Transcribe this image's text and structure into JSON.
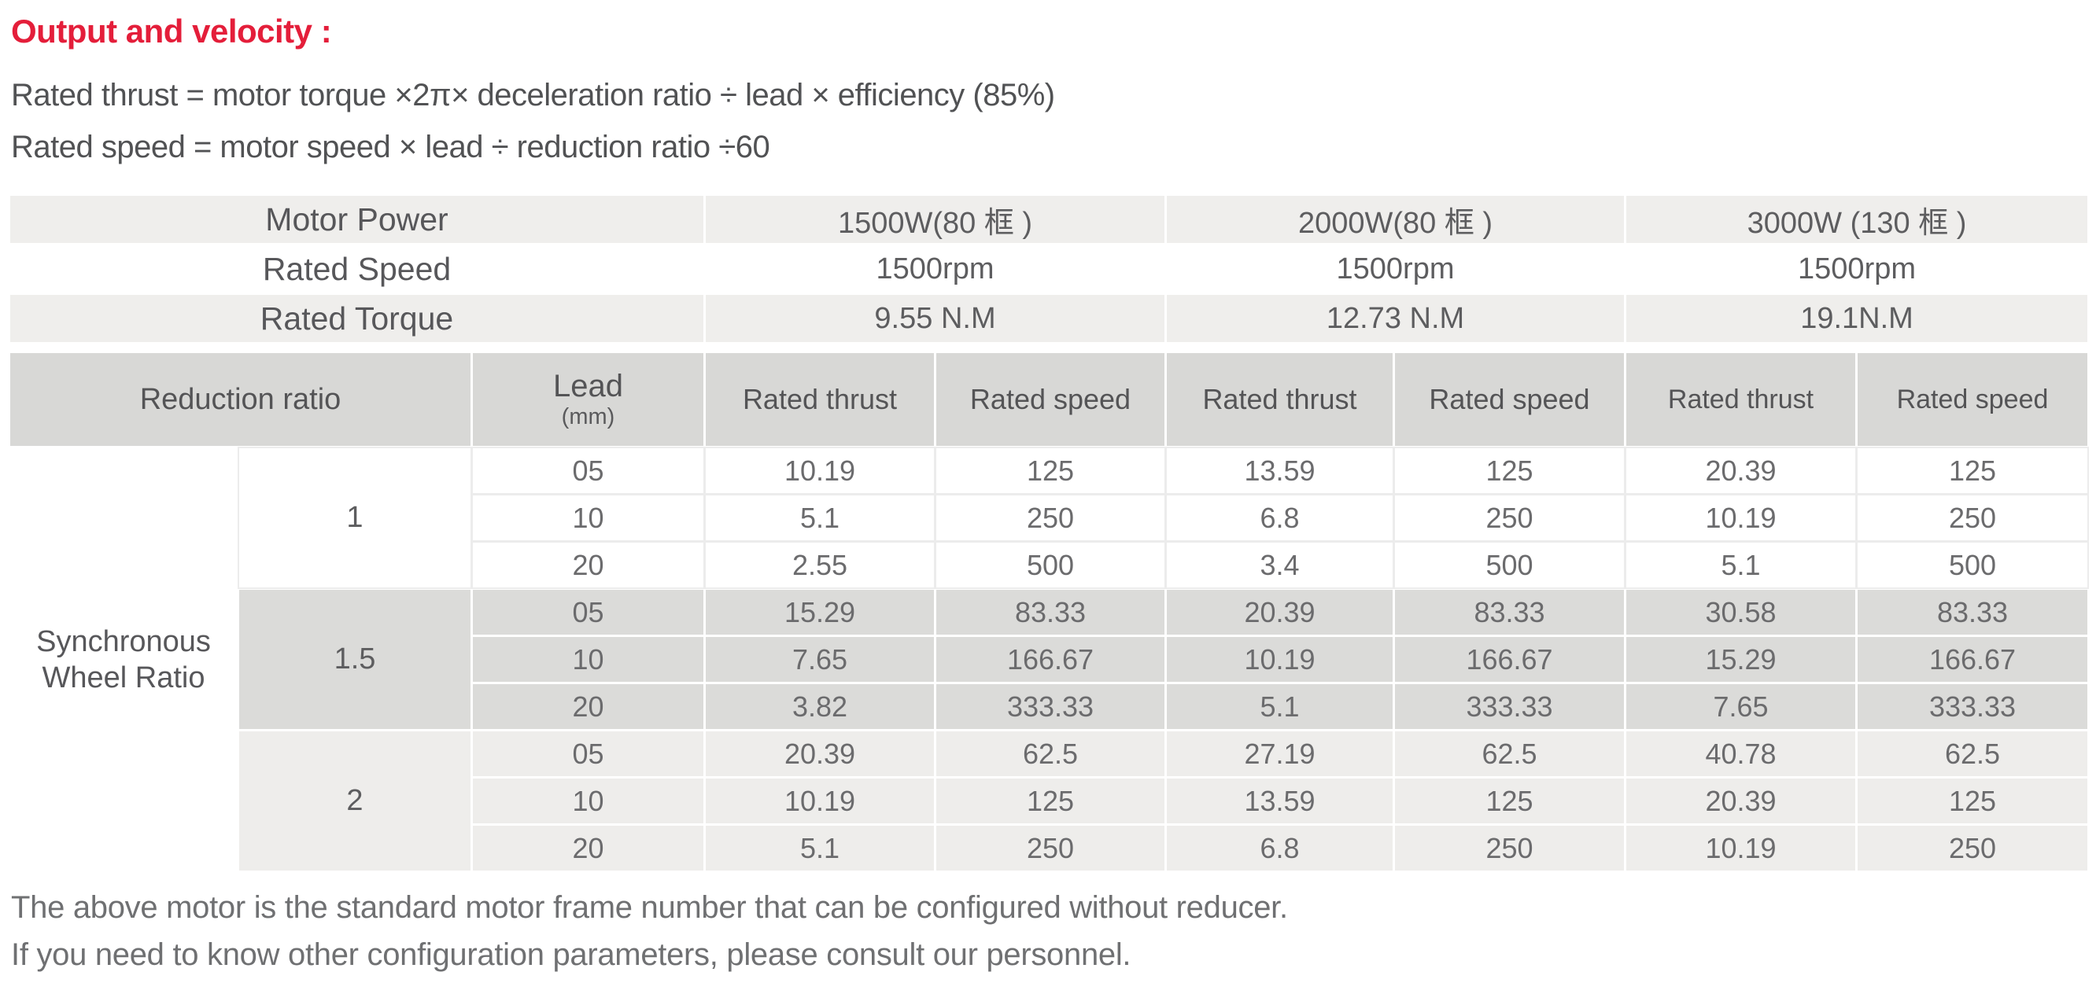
{
  "page": {
    "title": "Output and velocity :"
  },
  "formulas": {
    "thrust": "Rated thrust = motor torque ×2π× deceleration ratio ÷ lead × efficiency (85%)",
    "speed": "Rated speed = motor speed × lead ÷ reduction ratio ÷60"
  },
  "colors": {
    "accent_red": "#e41e3a",
    "band_light": "#efeeec",
    "band_header": "#d8d8d6",
    "band_group_mid": "#dbdbd9",
    "band_group_light": "#eeedeb",
    "text_label": "#57575a",
    "text_data": "#6b6b6d",
    "text_note": "#6f7072"
  },
  "spec_rows": [
    {
      "label": "Motor Power",
      "values": [
        "1500W(80 框 )",
        "2000W(80 框 )",
        "3000W (130 框 )"
      ]
    },
    {
      "label": "Rated Speed",
      "values": [
        "1500rpm",
        "1500rpm",
        "1500rpm"
      ]
    },
    {
      "label": "Rated Torque",
      "values": [
        "9.55 N.M",
        "12.73 N.M",
        "19.1N.M"
      ]
    }
  ],
  "table": {
    "headers": {
      "reduction_ratio": "Reduction ratio",
      "lead": "Lead",
      "lead_unit": "(mm)",
      "rated_thrust": "Rated thrust",
      "rated_speed": "Rated speed"
    },
    "row_group_label": "Synchronous Wheel Ratio",
    "groups": [
      {
        "ratio": "1",
        "rows": [
          {
            "lead": "05",
            "values": [
              "10.19",
              "125",
              "13.59",
              "125",
              "20.39",
              "125"
            ]
          },
          {
            "lead": "10",
            "values": [
              "5.1",
              "250",
              "6.8",
              "250",
              "10.19",
              "250"
            ]
          },
          {
            "lead": "20",
            "values": [
              "2.55",
              "500",
              "3.4",
              "500",
              "5.1",
              "500"
            ]
          }
        ]
      },
      {
        "ratio": "1.5",
        "rows": [
          {
            "lead": "05",
            "values": [
              "15.29",
              "83.33",
              "20.39",
              "83.33",
              "30.58",
              "83.33"
            ]
          },
          {
            "lead": "10",
            "values": [
              "7.65",
              "166.67",
              "10.19",
              "166.67",
              "15.29",
              "166.67"
            ]
          },
          {
            "lead": "20",
            "values": [
              "3.82",
              "333.33",
              "5.1",
              "333.33",
              "7.65",
              "333.33"
            ]
          }
        ]
      },
      {
        "ratio": "2",
        "rows": [
          {
            "lead": "05",
            "values": [
              "20.39",
              "62.5",
              "27.19",
              "62.5",
              "40.78",
              "62.5"
            ]
          },
          {
            "lead": "10",
            "values": [
              "10.19",
              "125",
              "13.59",
              "125",
              "20.39",
              "125"
            ]
          },
          {
            "lead": "20",
            "values": [
              "5.1",
              "250",
              "6.8",
              "250",
              "10.19",
              "250"
            ]
          }
        ]
      }
    ]
  },
  "notes": {
    "line1": "The above motor is the standard motor frame number that can be configured without reducer.",
    "line2": "If you need to know other configuration parameters, please consult our personnel."
  }
}
